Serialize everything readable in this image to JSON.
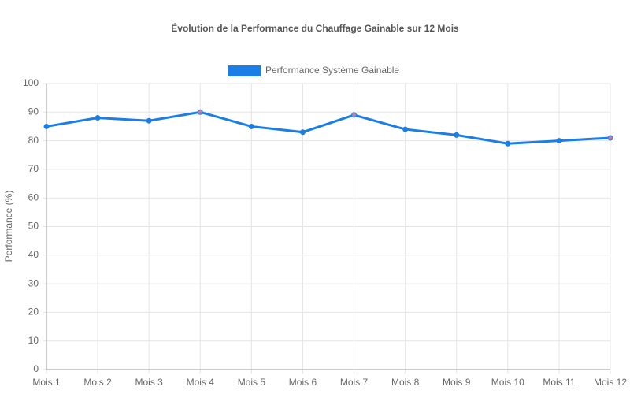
{
  "chart_data": {
    "type": "line",
    "title": "Évolution de la Performance du Chauffage Gainable sur 12 Mois",
    "y_label": "Performance (%)",
    "categories": [
      "Mois 1",
      "Mois 2",
      "Mois 3",
      "Mois 4",
      "Mois 5",
      "Mois 6",
      "Mois 7",
      "Mois 8",
      "Mois 9",
      "Mois 10",
      "Mois 11",
      "Mois 12"
    ],
    "series": [
      {
        "name": "Performance Système Gainable",
        "color": "#1a7ee6",
        "values": [
          85,
          88,
          87,
          90,
          85,
          83,
          89,
          84,
          82,
          79,
          80,
          81
        ],
        "point_colors": [
          "#1a7ee6",
          "#1a7ee6",
          "#1a7ee6",
          "#c77aa8",
          "#1a7ee6",
          "#1a7ee6",
          "#c77aa8",
          "#1a7ee6",
          "#1a7ee6",
          "#1a7ee6",
          "#1a7ee6",
          "#c77aa8"
        ]
      }
    ],
    "ylim": [
      0,
      100
    ],
    "yticks": [
      0,
      10,
      20,
      30,
      40,
      50,
      60,
      70,
      80,
      90,
      100
    ],
    "grid": true,
    "legend": "top"
  }
}
